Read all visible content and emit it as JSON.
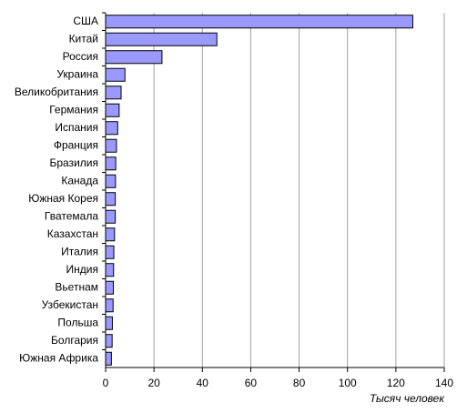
{
  "chart_data": {
    "type": "hbar",
    "categories": [
      "США",
      "Китай",
      "Россия",
      "Украина",
      "Великобритания",
      "Германия",
      "Испания",
      "Франция",
      "Бразилия",
      "Канада",
      "Южная Корея",
      "Гватемала",
      "Казахстан",
      "Италия",
      "Индия",
      "Вьетнам",
      "Узбекистан",
      "Польша",
      "Болгария",
      "Южная Африка"
    ],
    "values": [
      127,
      46,
      23.3,
      8,
      6.4,
      5.6,
      5,
      4.5,
      4.2,
      4.1,
      4,
      4,
      3.7,
      3.4,
      3.3,
      3.2,
      3.1,
      2.8,
      2.7,
      2.4
    ],
    "color": "#9999ff",
    "x_label": "Тысяч человек",
    "xlim": [
      0,
      140
    ],
    "xticks": [
      0,
      20,
      40,
      60,
      80,
      100,
      120,
      140
    ],
    "grid": true
  }
}
